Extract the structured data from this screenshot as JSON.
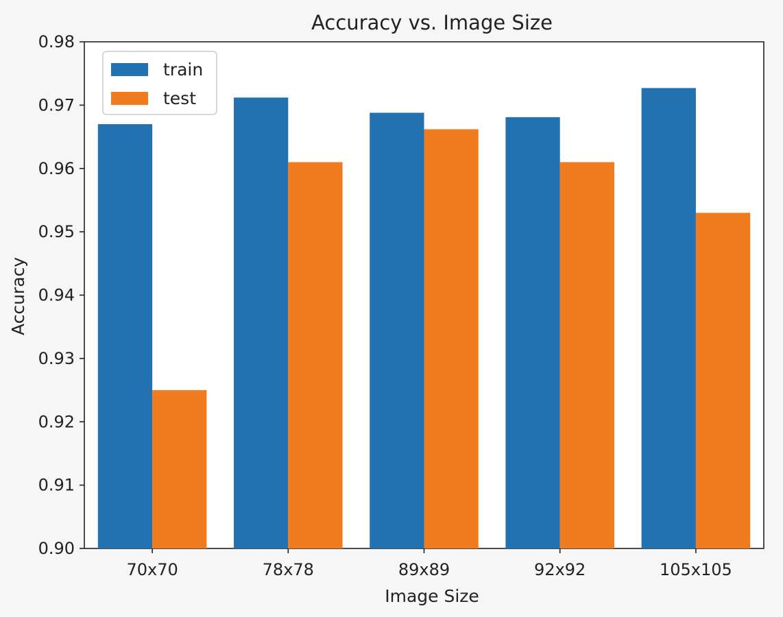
{
  "chart_data": {
    "type": "bar",
    "title": "Accuracy vs. Image Size",
    "xlabel": "Image Size",
    "ylabel": "Accuracy",
    "categories": [
      "70x70",
      "78x78",
      "89x89",
      "92x92",
      "105x105"
    ],
    "series": [
      {
        "name": "train",
        "color": "#2271b1",
        "values": [
          0.967,
          0.9712,
          0.9688,
          0.9681,
          0.9727
        ]
      },
      {
        "name": "test",
        "color": "#f17b1f",
        "values": [
          0.925,
          0.961,
          0.9662,
          0.961,
          0.953
        ]
      }
    ],
    "ylim": [
      0.9,
      0.98
    ],
    "yticks": [
      "0.90",
      "0.91",
      "0.92",
      "0.93",
      "0.94",
      "0.95",
      "0.96",
      "0.97",
      "0.98"
    ],
    "legend_position": "top-left",
    "grid": false
  }
}
